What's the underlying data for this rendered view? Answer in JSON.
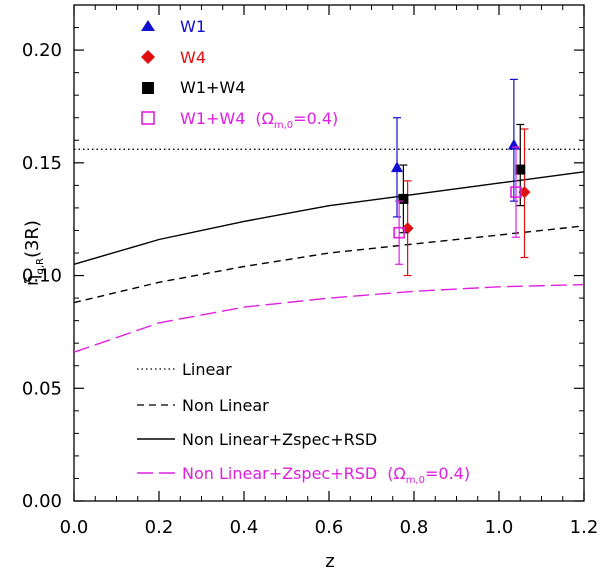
{
  "chart_data": {
    "type": "scatter",
    "xlabel": "z",
    "ylabel": {
      "base": "η̃",
      "sub": "g,R",
      "suffix": "(3R)"
    },
    "xlim": [
      0.0,
      1.2
    ],
    "ylim": [
      0.0,
      0.22
    ],
    "xticks": [
      "0.0",
      "0.2",
      "0.4",
      "0.6",
      "0.8",
      "1.0",
      "1.2"
    ],
    "yticks": [
      "0.00",
      "0.05",
      "0.10",
      "0.15",
      "0.20"
    ],
    "points": [
      {
        "name": "W1",
        "color": "#1010d0",
        "marker": "triangle",
        "x": [
          0.76,
          1.035
        ],
        "y": [
          0.148,
          0.158
        ],
        "err_lo": [
          0.022,
          0.025
        ],
        "err_hi": [
          0.022,
          0.029
        ]
      },
      {
        "name": "W4",
        "color": "#e01010",
        "marker": "diamond",
        "x": [
          0.785,
          1.06
        ],
        "y": [
          0.121,
          0.137
        ],
        "err_lo": [
          0.021,
          0.029
        ],
        "err_hi": [
          0.021,
          0.028
        ]
      },
      {
        "name": "W1+W4",
        "color": "#000000",
        "marker": "square",
        "x": [
          0.775,
          1.05
        ],
        "y": [
          0.134,
          0.147
        ],
        "err_lo": [
          0.015,
          0.016
        ],
        "err_hi": [
          0.015,
          0.02
        ]
      },
      {
        "name": "W1+W4",
        "omega": "(Ω",
        "omega_sub": "m,0",
        "omega_tail": "=0.4)",
        "color": "#e020e0",
        "marker": "open-square",
        "x": [
          0.765,
          1.04
        ],
        "y": [
          0.119,
          0.137
        ],
        "err_lo": [
          0.014,
          0.02
        ],
        "err_hi": [
          0.014,
          0.02
        ]
      }
    ],
    "lines": [
      {
        "name": "Linear",
        "color": "#000000",
        "style": "dotted",
        "x": [
          0.0,
          1.2
        ],
        "y": [
          0.156,
          0.156
        ]
      },
      {
        "name": "Non Linear",
        "color": "#000000",
        "style": "dashed",
        "x": [
          0.0,
          0.2,
          0.4,
          0.6,
          0.8,
          1.0,
          1.2
        ],
        "y": [
          0.088,
          0.097,
          0.104,
          0.11,
          0.114,
          0.118,
          0.122
        ]
      },
      {
        "name": "Non Linear+Zspec+RSD",
        "color": "#000000",
        "style": "solid",
        "x": [
          0.0,
          0.2,
          0.4,
          0.6,
          0.8,
          1.0,
          1.2
        ],
        "y": [
          0.105,
          0.116,
          0.124,
          0.131,
          0.136,
          0.141,
          0.146
        ]
      },
      {
        "name": "Non Linear+Zspec+RSD",
        "omega": "(Ω",
        "omega_sub": "m,0",
        "omega_tail": "=0.4)",
        "color": "#e020e0",
        "style": "longdash",
        "x": [
          0.0,
          0.2,
          0.4,
          0.6,
          0.8,
          1.0,
          1.2
        ],
        "y": [
          0.066,
          0.079,
          0.086,
          0.09,
          0.093,
          0.095,
          0.096
        ]
      }
    ]
  }
}
